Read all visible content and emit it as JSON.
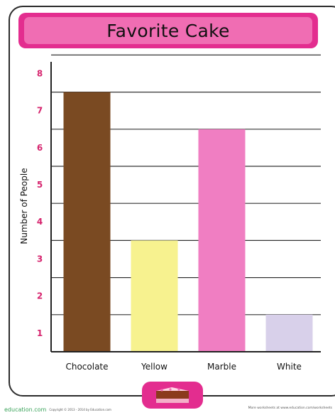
{
  "chart_data": {
    "type": "bar",
    "title": "Favorite Cake",
    "xlabel": "",
    "ylabel": "Number of People",
    "categories": [
      "Chocolate",
      "Yellow",
      "Marble",
      "White"
    ],
    "values": [
      7,
      3,
      6,
      1
    ],
    "colors": [
      "#7a4a22",
      "#f7f28f",
      "#f07ec2",
      "#d8d0ea"
    ],
    "ylim": [
      0,
      8
    ],
    "yticks": [
      1,
      2,
      3,
      4,
      5,
      6,
      7,
      8
    ],
    "grid": true,
    "tick_label_color": "#d6246e"
  },
  "footer": {
    "logo": "education.com",
    "copyright": "Copyright © 2013 - 2014 by Education.com",
    "more": "More worksheets at www.education.com/worksheets"
  }
}
